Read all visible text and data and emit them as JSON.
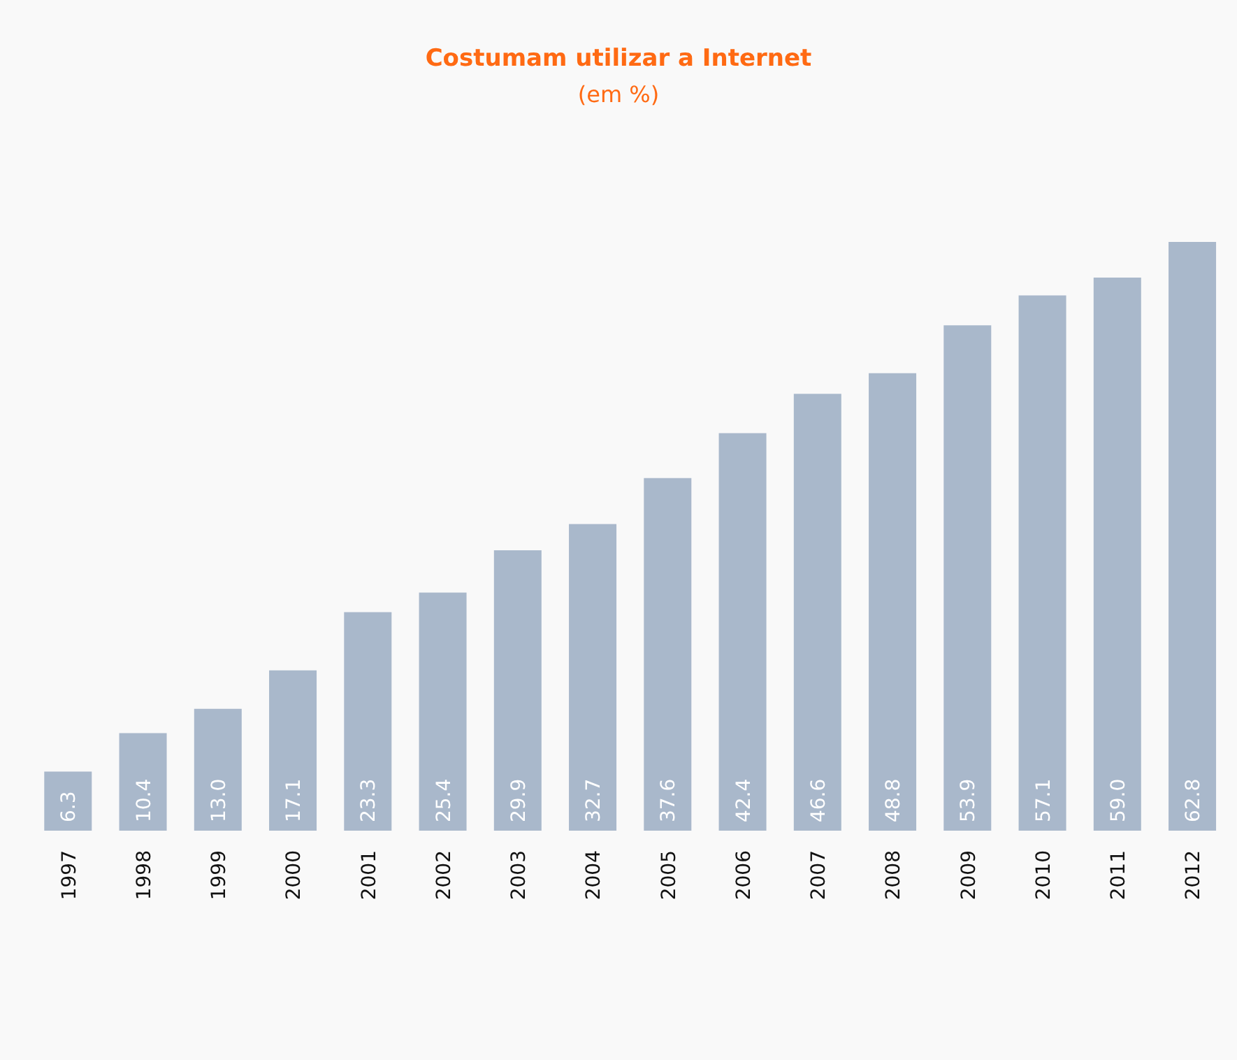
{
  "chart_data": {
    "type": "bar",
    "title": "Costumam utilizar a Internet",
    "subtitle": "(em %)",
    "categories": [
      "1997",
      "1998",
      "1999",
      "2000",
      "2001",
      "2002",
      "2003",
      "2004",
      "2005",
      "2006",
      "2007",
      "2008",
      "2009",
      "2010",
      "2011",
      "2012"
    ],
    "values": [
      6.3,
      10.4,
      13.0,
      17.1,
      23.3,
      25.4,
      29.9,
      32.7,
      37.6,
      42.4,
      46.6,
      48.8,
      53.9,
      57.1,
      59.0,
      62.8
    ],
    "value_labels": [
      "6.3",
      "10.4",
      "13.0",
      "17.1",
      "23.3",
      "25.4",
      "29.9",
      "32.7",
      "37.6",
      "42.4",
      "46.6",
      "48.8",
      "53.9",
      "57.1",
      "59.0",
      "62.8"
    ],
    "color": "#a9b8cb"
  }
}
